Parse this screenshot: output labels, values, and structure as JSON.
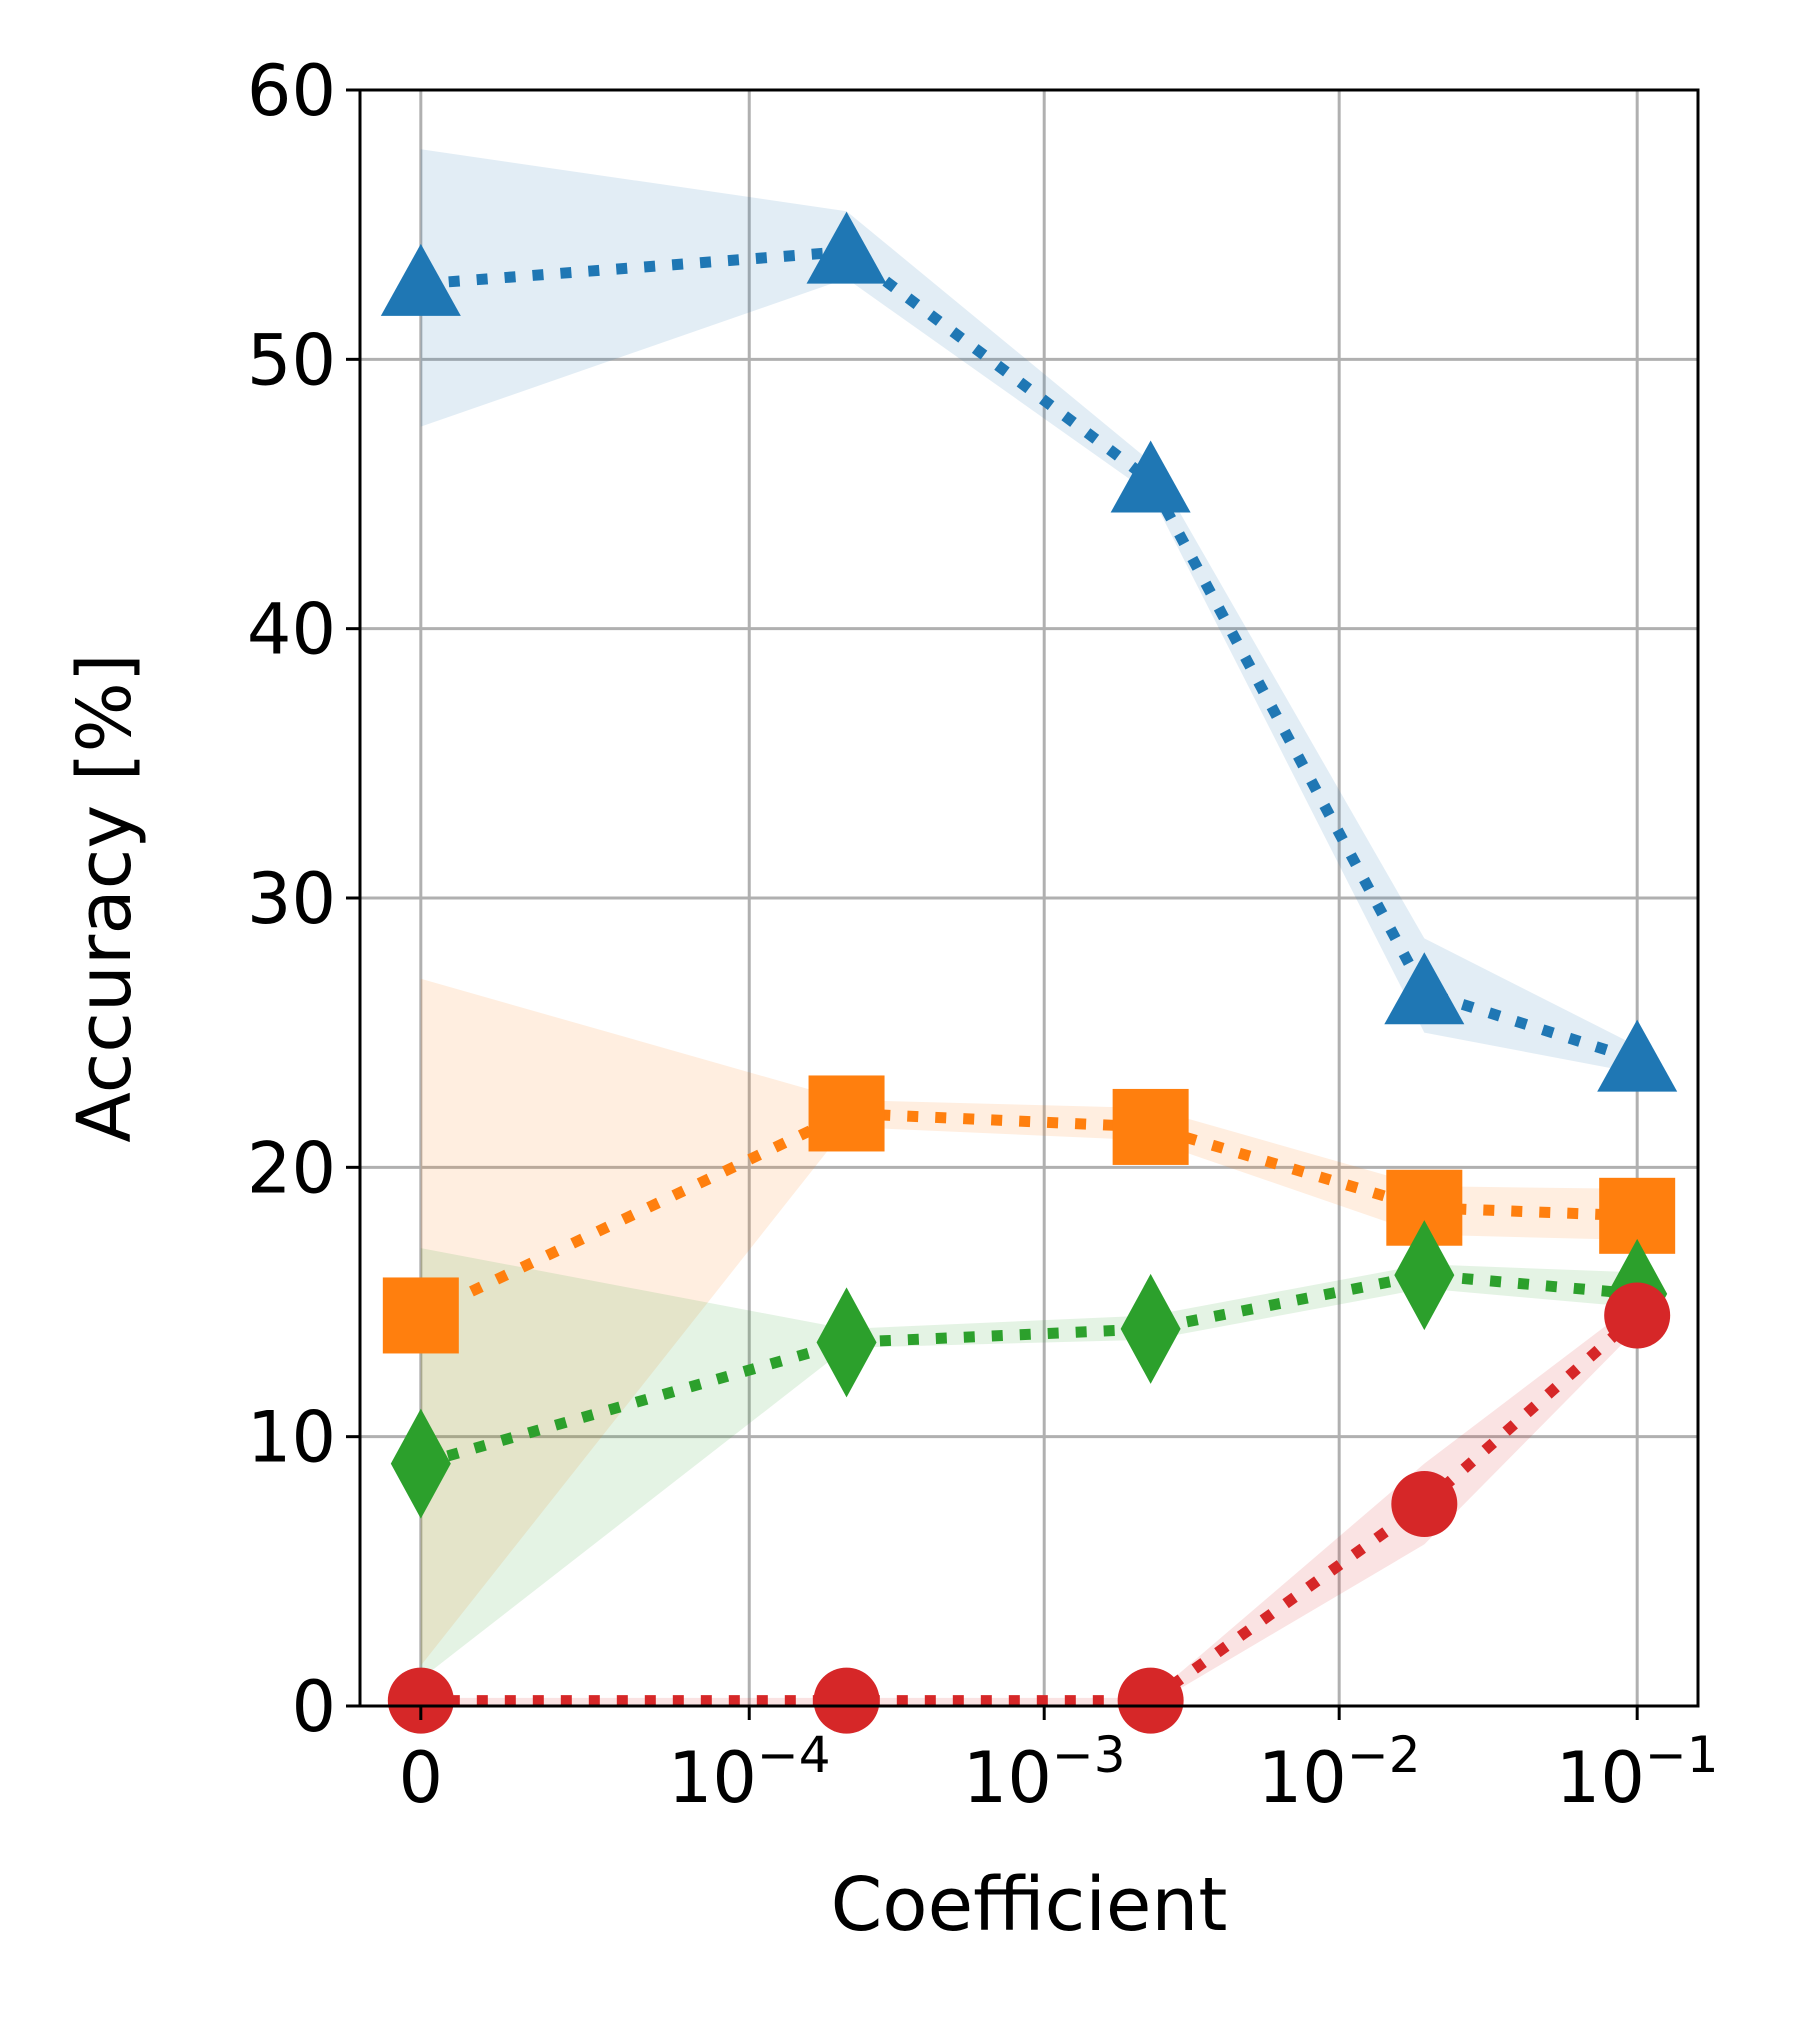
{
  "chart_data": {
    "type": "line",
    "title": "",
    "xlabel": "Coefficient",
    "ylabel": "Accuracy [%]",
    "ylim": [
      0,
      60
    ],
    "grid": true,
    "x_tick_labels": [
      {
        "base": "0",
        "exp": ""
      },
      {
        "base": "10",
        "exp": "−4"
      },
      {
        "base": "10",
        "exp": "−3"
      },
      {
        "base": "10",
        "exp": "−2"
      },
      {
        "base": "10",
        "exp": "−1"
      }
    ],
    "y_ticks": [
      0,
      10,
      20,
      30,
      40,
      50,
      60
    ],
    "x_values": [
      0,
      1.4,
      2.4,
      3.3,
      4.0
    ],
    "series": [
      {
        "name": "blue",
        "color": "#1f77b4",
        "marker": "triangle",
        "values": [
          52.8,
          54.0,
          45.5,
          26.5,
          24.0
        ],
        "lower": [
          47.5,
          53.0,
          45.0,
          25.0,
          23.5
        ],
        "upper": [
          57.8,
          55.5,
          46.2,
          28.5,
          24.5
        ]
      },
      {
        "name": "orange",
        "color": "#ff7f0e",
        "marker": "square",
        "values": [
          14.5,
          22.0,
          21.5,
          18.5,
          18.2
        ],
        "lower": [
          1.5,
          21.5,
          21.0,
          17.5,
          17.3
        ],
        "upper": [
          27.0,
          22.5,
          22.2,
          19.3,
          19.2
        ]
      },
      {
        "name": "green",
        "color": "#2ca02c",
        "marker": "diamond",
        "values": [
          9.0,
          13.5,
          14.0,
          16.0,
          15.3
        ],
        "lower": [
          1.0,
          13.3,
          13.6,
          15.5,
          14.8
        ],
        "upper": [
          17.0,
          14.0,
          14.5,
          16.4,
          16.1
        ]
      },
      {
        "name": "red",
        "color": "#d62728",
        "marker": "circle",
        "values": [
          0.2,
          0.2,
          0.2,
          7.5,
          14.5
        ],
        "lower": [
          0.0,
          0.0,
          0.0,
          6.0,
          14.0
        ],
        "upper": [
          0.3,
          0.3,
          0.3,
          9.0,
          15.0
        ]
      }
    ]
  }
}
